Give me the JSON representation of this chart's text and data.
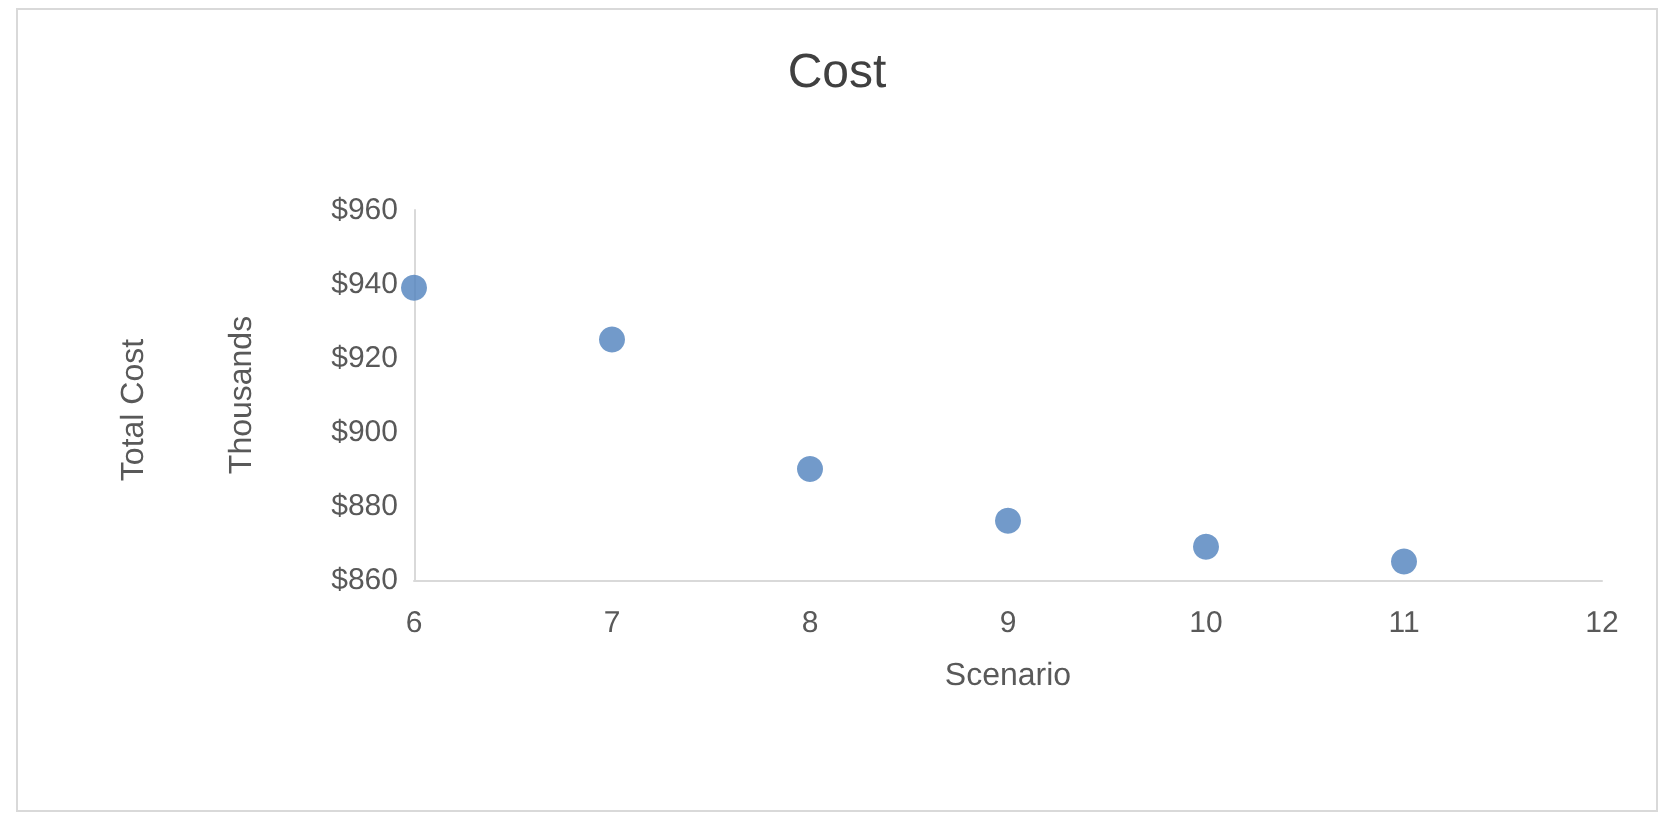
{
  "chart_data": {
    "type": "scatter",
    "title": "Cost",
    "xlabel": "Scenario",
    "ylabel": "Thousands",
    "annotations": [
      "Total Cost"
    ],
    "x": [
      6,
      7,
      8,
      9,
      10,
      11
    ],
    "series": [
      {
        "color": "#4f81bd",
        "values": [
          939,
          925,
          890,
          876,
          869,
          865
        ]
      }
    ],
    "xlim": [
      6,
      12
    ],
    "xticks": [
      6,
      7,
      8,
      9,
      10,
      11,
      12
    ],
    "ylim": [
      860,
      960
    ],
    "yticks": [
      {
        "value": 860,
        "label": "$860"
      },
      {
        "value": 880,
        "label": "$880"
      },
      {
        "value": 900,
        "label": "$900"
      },
      {
        "value": 920,
        "label": "$920"
      },
      {
        "value": 940,
        "label": "$940"
      },
      {
        "value": 960,
        "label": "$960"
      }
    ],
    "grid": false,
    "marker": "circle"
  }
}
